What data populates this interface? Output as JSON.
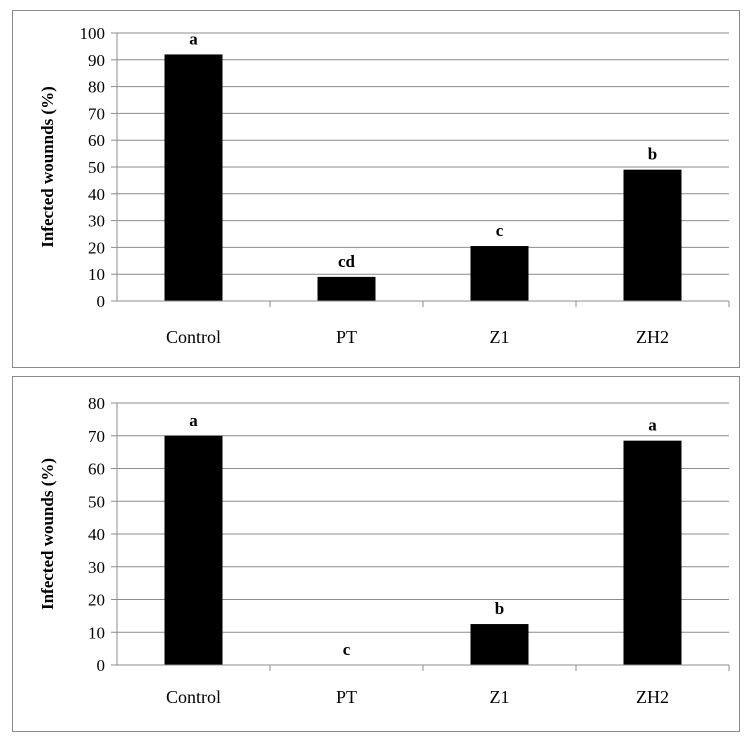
{
  "chart_data": [
    {
      "type": "bar",
      "ylabel": "Infected wounnds (%)",
      "categories": [
        "Control",
        "PT",
        "Z1",
        "ZH2"
      ],
      "values": [
        92,
        9,
        20.5,
        49
      ],
      "data_labels": [
        "a",
        "cd",
        "c",
        "b"
      ],
      "ylim": [
        0,
        100
      ],
      "yticks": [
        0,
        10,
        20,
        30,
        40,
        50,
        60,
        70,
        80,
        90,
        100
      ],
      "grid": true,
      "bar_color": "#000000"
    },
    {
      "type": "bar",
      "ylabel": "Infected wounds (%)",
      "categories": [
        "Control",
        "PT",
        "Z1",
        "ZH2"
      ],
      "values": [
        70,
        0,
        12.5,
        68.5
      ],
      "data_labels": [
        "a",
        "c",
        "b",
        "a"
      ],
      "ylim": [
        0,
        80
      ],
      "yticks": [
        0,
        10,
        20,
        30,
        40,
        50,
        60,
        70,
        80
      ],
      "grid": true,
      "bar_color": "#000000"
    }
  ]
}
